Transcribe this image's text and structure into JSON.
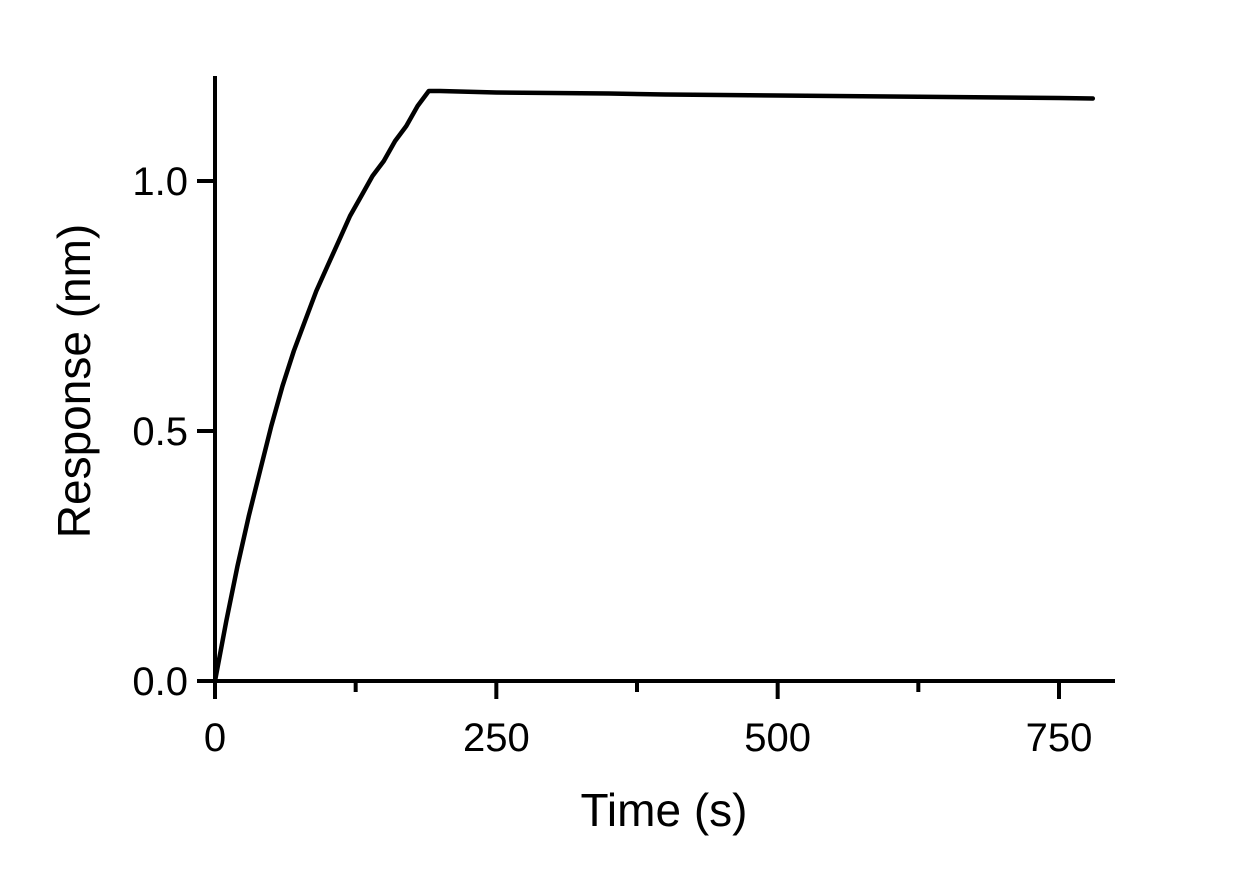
{
  "chart_data": {
    "type": "line",
    "title": "",
    "xlabel": "Time (s)",
    "ylabel": "Response (nm)",
    "xlim": [
      0,
      800
    ],
    "ylim": [
      0,
      1.2
    ],
    "x_ticks": [
      0,
      250,
      500,
      750
    ],
    "x_tick_labels": [
      "0",
      "250",
      "500",
      "750"
    ],
    "x_minor_ticks": [
      125,
      375,
      625
    ],
    "y_ticks": [
      0,
      0.5,
      1.0
    ],
    "y_tick_labels": [
      "0.0",
      "0.5",
      "1.0"
    ],
    "grid": false,
    "legend": "none",
    "line_color": "#000000",
    "series": [
      {
        "x": [
          0,
          10,
          20,
          30,
          40,
          50,
          60,
          70,
          80,
          90,
          100,
          110,
          120,
          130,
          140,
          150,
          160,
          170,
          180,
          190,
          200,
          250,
          300,
          350,
          400,
          450,
          500,
          550,
          600,
          650,
          700,
          750,
          780
        ],
        "y": [
          0.0,
          0.12,
          0.23,
          0.33,
          0.42,
          0.51,
          0.59,
          0.66,
          0.72,
          0.78,
          0.83,
          0.88,
          0.93,
          0.97,
          1.01,
          1.04,
          1.08,
          1.11,
          1.15,
          1.18,
          1.18,
          1.177,
          1.176,
          1.175,
          1.173,
          1.172,
          1.171,
          1.17,
          1.169,
          1.168,
          1.167,
          1.166,
          1.165
        ]
      }
    ]
  }
}
